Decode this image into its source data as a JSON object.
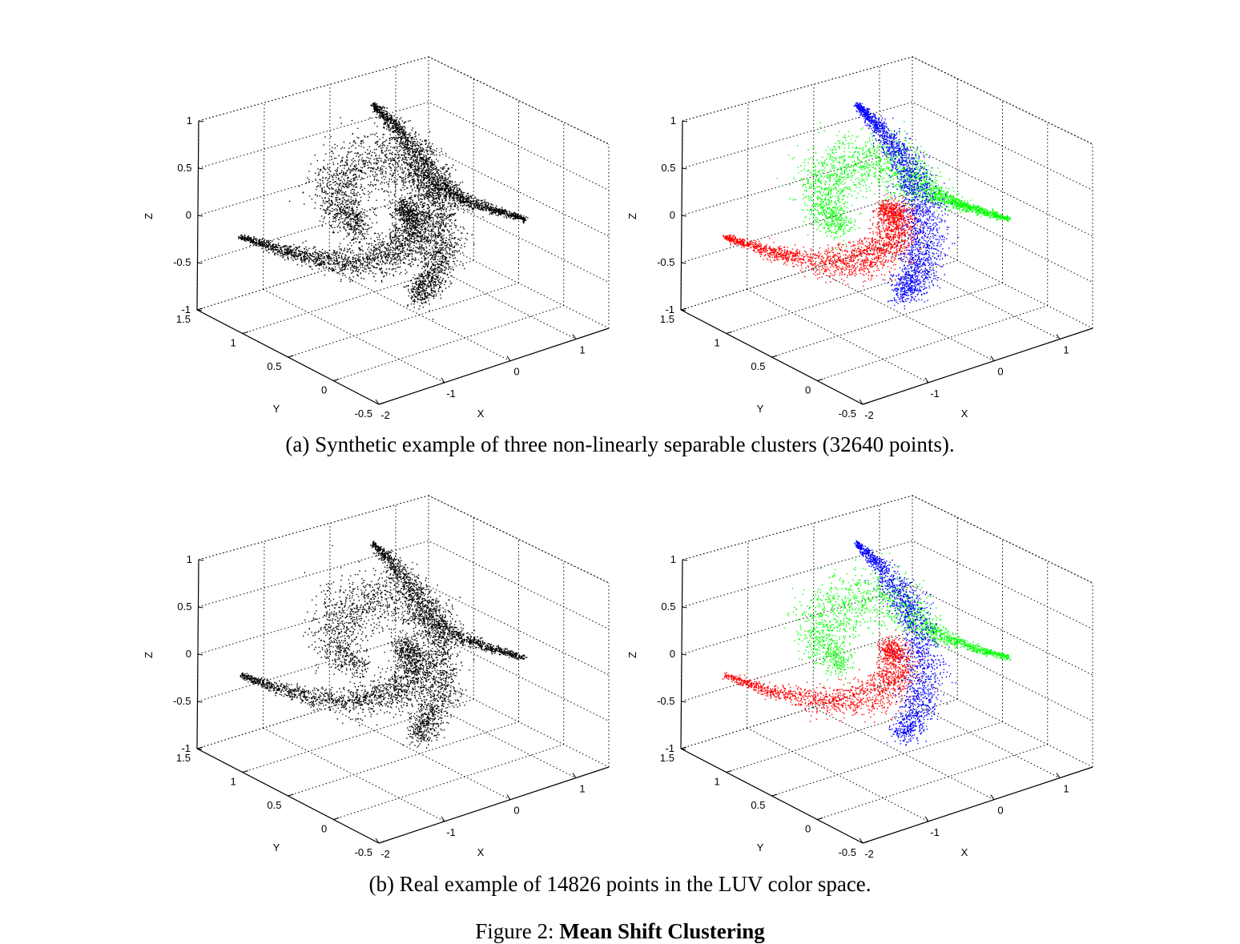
{
  "figure": {
    "label": "Figure 2:",
    "title": "Mean Shift Clustering"
  },
  "subfigures": [
    {
      "caption": "(a) Synthetic example of three non-linearly separable clusters (32640 points)."
    },
    {
      "caption": "(b) Real example of 14826 points in the LUV color space."
    }
  ],
  "colors": {
    "cluster1": "#ff0000",
    "cluster2": "#00ff00",
    "cluster3": "#0000ff",
    "unclustered": "#000000"
  },
  "chart_data": [
    {
      "type": "scatter",
      "dimensions": 3,
      "subfigure": "a",
      "xlabel": "X",
      "ylabel": "Y",
      "zlabel": "Z",
      "xticks": [
        "-2",
        "-1",
        "0",
        "1"
      ],
      "yticks": [
        "-0.5",
        "0",
        "0.5",
        "1",
        "1.5"
      ],
      "zticks": [
        "-1",
        "-0.5",
        "0",
        "0.5",
        "1"
      ],
      "xlim": [
        -2,
        1.5
      ],
      "ylim": [
        -0.5,
        1.5
      ],
      "zlim": [
        -1,
        1
      ],
      "grid": true,
      "colored": false,
      "series": [
        {
          "color": "#000000",
          "shape": "three-arm spiral"
        }
      ]
    },
    {
      "type": "scatter",
      "dimensions": 3,
      "subfigure": "a",
      "xlabel": "X",
      "ylabel": "Y",
      "zlabel": "Z",
      "xticks": [
        "-2",
        "-1",
        "0",
        "1"
      ],
      "yticks": [
        "-0.5",
        "0",
        "0.5",
        "1",
        "1.5"
      ],
      "zticks": [
        "-1",
        "-0.5",
        "0",
        "0.5",
        "1"
      ],
      "xlim": [
        -2,
        1.5
      ],
      "ylim": [
        -0.5,
        1.5
      ],
      "zlim": [
        -1,
        1
      ],
      "grid": true,
      "colored": true,
      "series": [
        {
          "color": "#ff0000",
          "shape": "lower-left arm"
        },
        {
          "color": "#00ff00",
          "shape": "upper arm"
        },
        {
          "color": "#0000ff",
          "shape": "right arm"
        }
      ]
    },
    {
      "type": "scatter",
      "dimensions": 3,
      "subfigure": "b",
      "xlabel": "X",
      "ylabel": "Y",
      "zlabel": "Z",
      "xticks": [
        "-2",
        "-1",
        "0",
        "1"
      ],
      "yticks": [
        "-0.5",
        "0",
        "0.5",
        "1",
        "1.5"
      ],
      "zticks": [
        "-1",
        "-0.5",
        "0",
        "0.5",
        "1"
      ],
      "xlim": [
        -2,
        1.5
      ],
      "ylim": [
        -0.5,
        1.5
      ],
      "zlim": [
        -1,
        1
      ],
      "grid": true,
      "colored": false,
      "series": [
        {
          "color": "#000000",
          "shape": "three-arm spiral"
        }
      ]
    },
    {
      "type": "scatter",
      "dimensions": 3,
      "subfigure": "b",
      "xlabel": "X",
      "ylabel": "Y",
      "zlabel": "Z",
      "xticks": [
        "-2",
        "-1",
        "0",
        "1"
      ],
      "yticks": [
        "-0.5",
        "0",
        "0.5",
        "1",
        "1.5"
      ],
      "zticks": [
        "-1",
        "-0.5",
        "0",
        "0.5",
        "1"
      ],
      "xlim": [
        -2,
        1.5
      ],
      "ylim": [
        -0.5,
        1.5
      ],
      "zlim": [
        -1,
        1
      ],
      "grid": true,
      "colored": true,
      "series": [
        {
          "color": "#ff0000",
          "shape": "lower-left arm"
        },
        {
          "color": "#00ff00",
          "shape": "upper arm"
        },
        {
          "color": "#0000ff",
          "shape": "right arm"
        }
      ]
    }
  ]
}
